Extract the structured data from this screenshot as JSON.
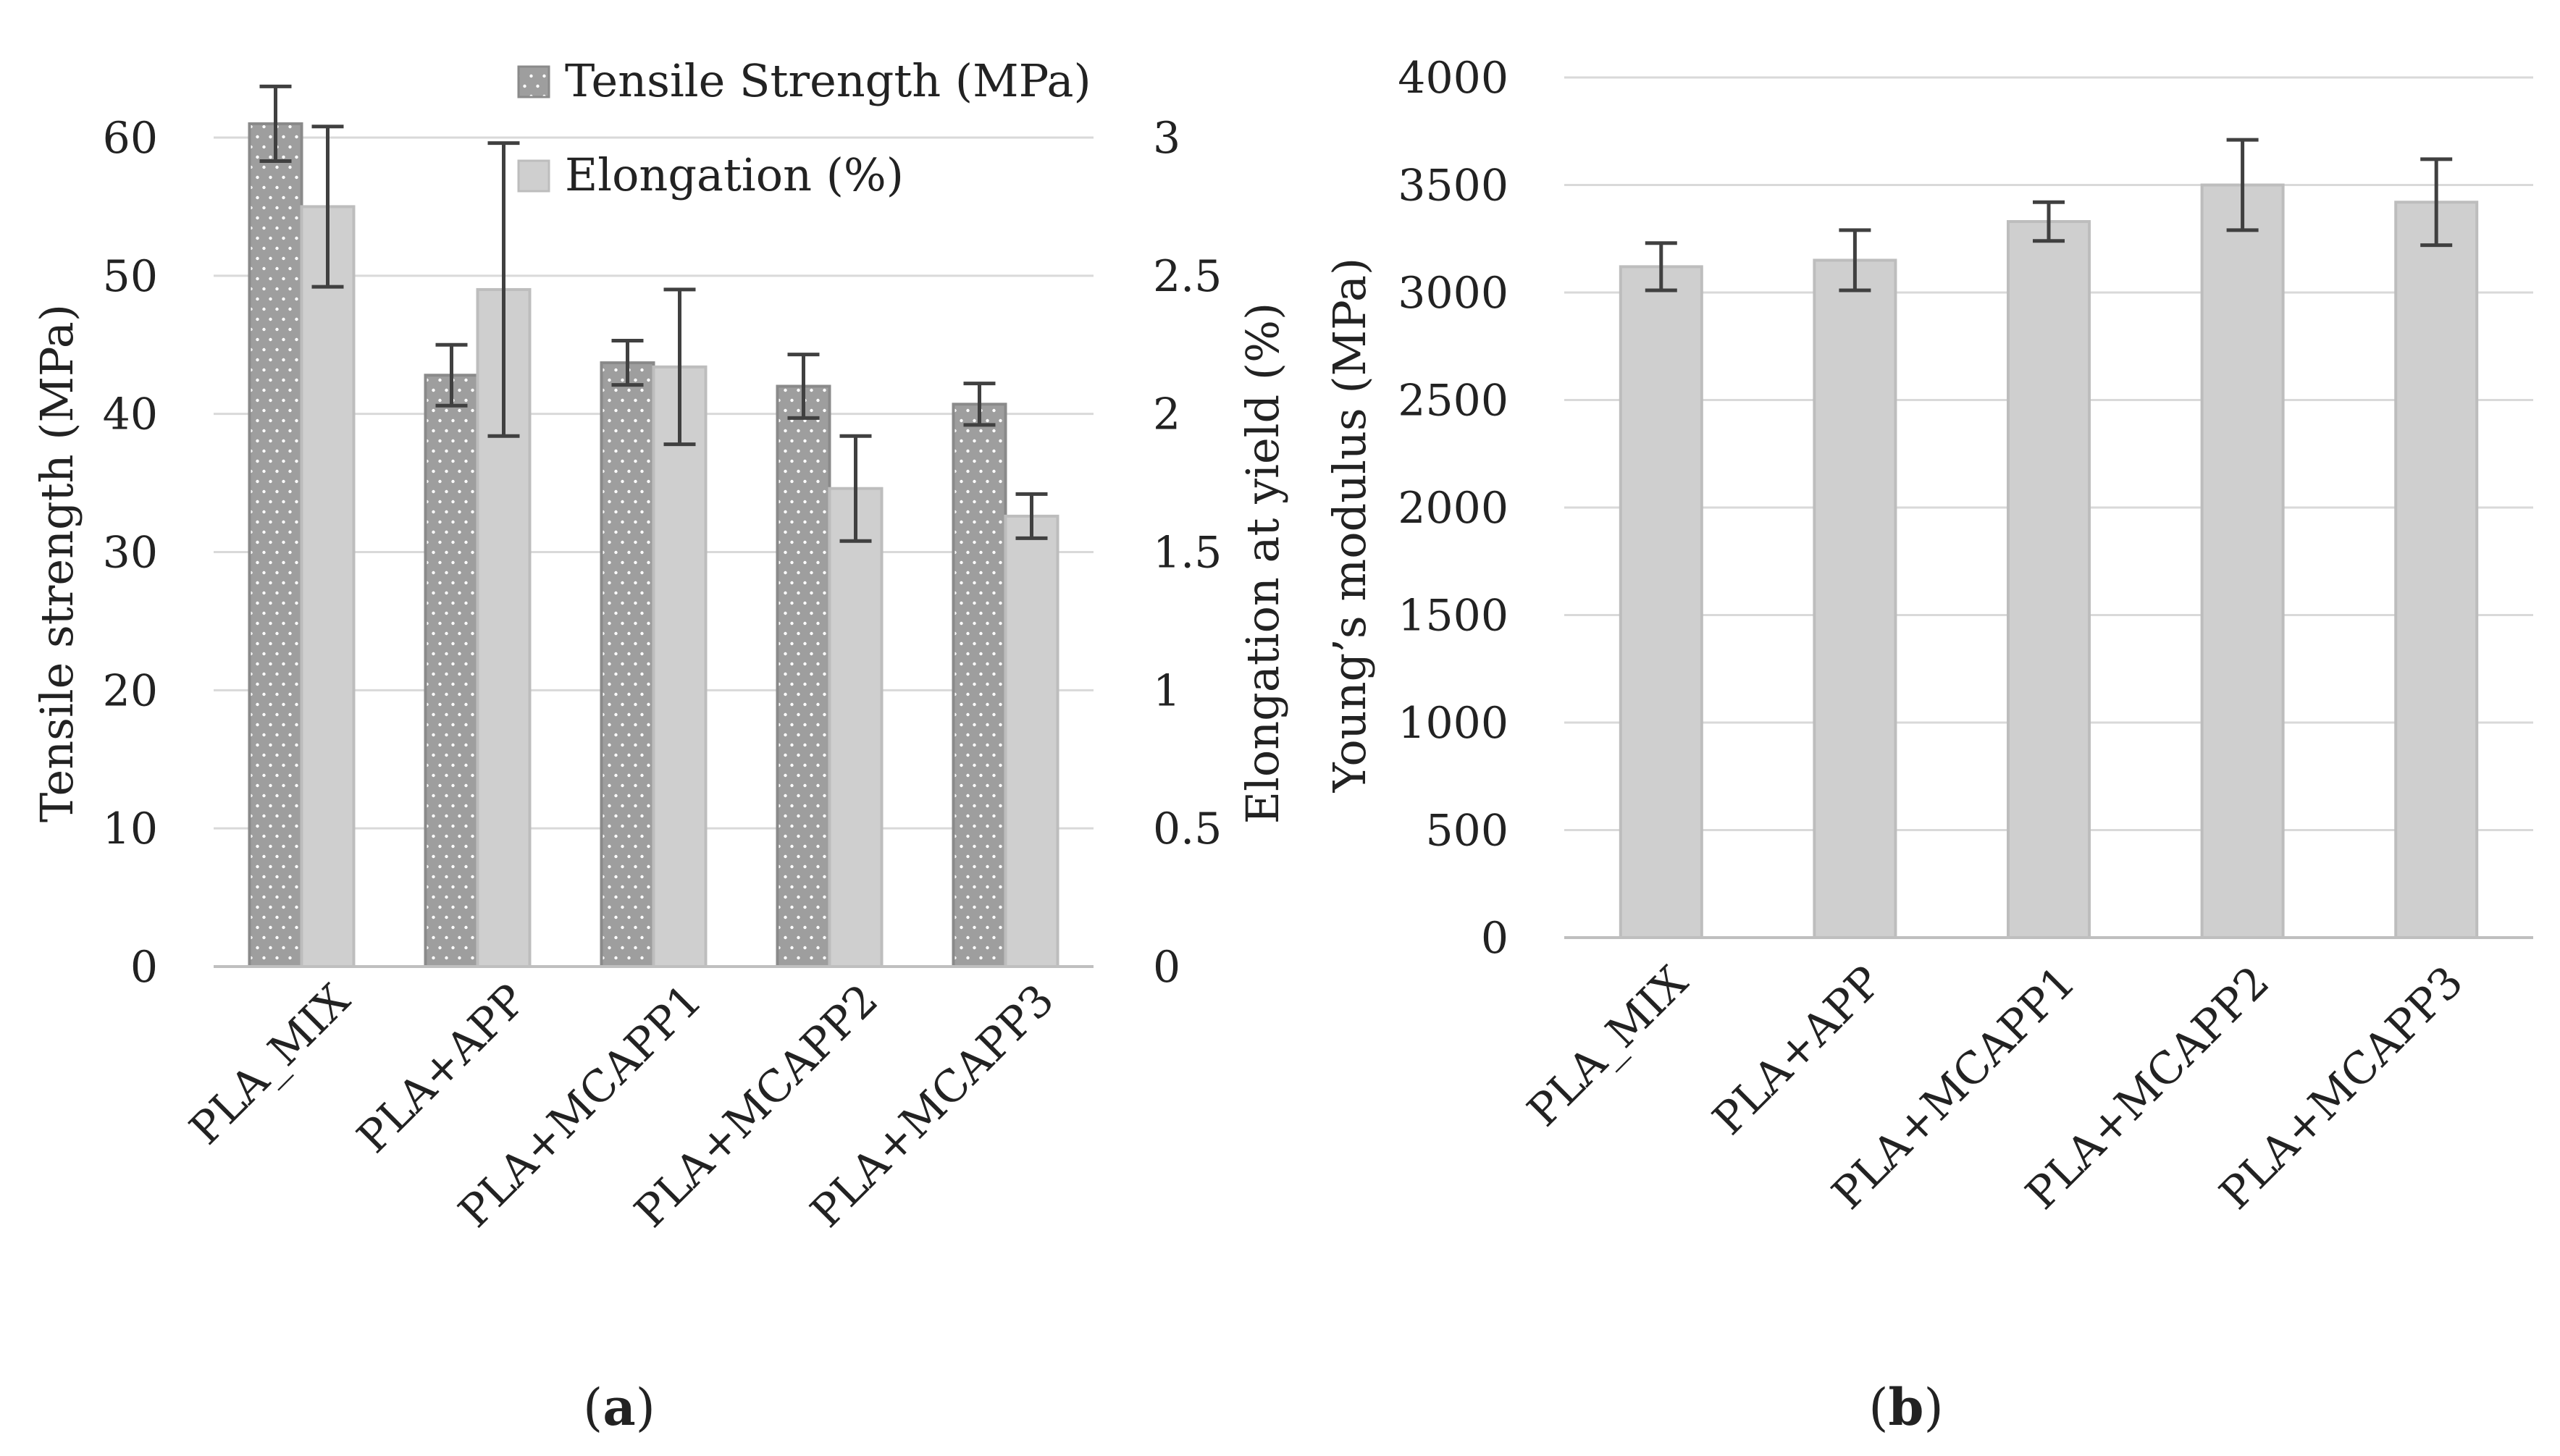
{
  "chart_data": [
    {
      "panel_label": "a",
      "type": "bar",
      "categories": [
        "PLA_MIX",
        "PLA+APP",
        "PLA+MCAPP1",
        "PLA+MCAPP2",
        "PLA+MCAPP3"
      ],
      "ylabel": "Tensile strength  (MPa)",
      "y2label": "Elongation at yield (%)",
      "ylim": [
        0,
        60
      ],
      "y2lim": [
        0,
        3
      ],
      "yticks": [
        "0",
        "10",
        "20",
        "30",
        "40",
        "50",
        "60"
      ],
      "y2ticks": [
        "0",
        "0.5",
        "1",
        "1.5",
        "2",
        "2.5",
        "3"
      ],
      "grid": true,
      "legend_position": "top-right",
      "series": [
        {
          "name": "Tensile Strength (MPa)",
          "axis": "left",
          "pattern": "dotted",
          "color": "#9e9e9e",
          "edge_color": "#8a8a8a",
          "values": [
            61,
            42.8,
            43.7,
            42,
            40.7
          ],
          "errors": [
            2.7,
            2.2,
            1.6,
            2.3,
            1.5
          ]
        },
        {
          "name": "Elongation (%)",
          "axis": "right",
          "pattern": "solid",
          "color": "#cfcfcf",
          "edge_color": "#bdbdbd",
          "values": [
            2.75,
            2.45,
            2.17,
            1.73,
            1.63
          ],
          "errors": [
            0.29,
            0.53,
            0.28,
            0.19,
            0.08
          ]
        }
      ]
    },
    {
      "panel_label": "b",
      "type": "bar",
      "categories": [
        "PLA_MIX",
        "PLA+APP",
        "PLA+MCAPP1",
        "PLA+MCAPP2",
        "PLA+MCAPP3"
      ],
      "ylabel": "Young’s modulus (MPa)",
      "ylim": [
        0,
        4000
      ],
      "yticks": [
        "0",
        "500",
        "1000",
        "1500",
        "2000",
        "2500",
        "3000",
        "3500",
        "4000"
      ],
      "grid": true,
      "series": [
        {
          "name": "Young’s modulus",
          "color": "#cfcfcf",
          "edge_color": "#bdbdbd",
          "values": [
            3120,
            3150,
            3330,
            3500,
            3420
          ],
          "errors": [
            110,
            140,
            90,
            210,
            200
          ]
        }
      ]
    }
  ],
  "colors": {
    "grid": "#d9d9d9",
    "axis": "#bfbfbf",
    "error_bar": "#404040"
  }
}
